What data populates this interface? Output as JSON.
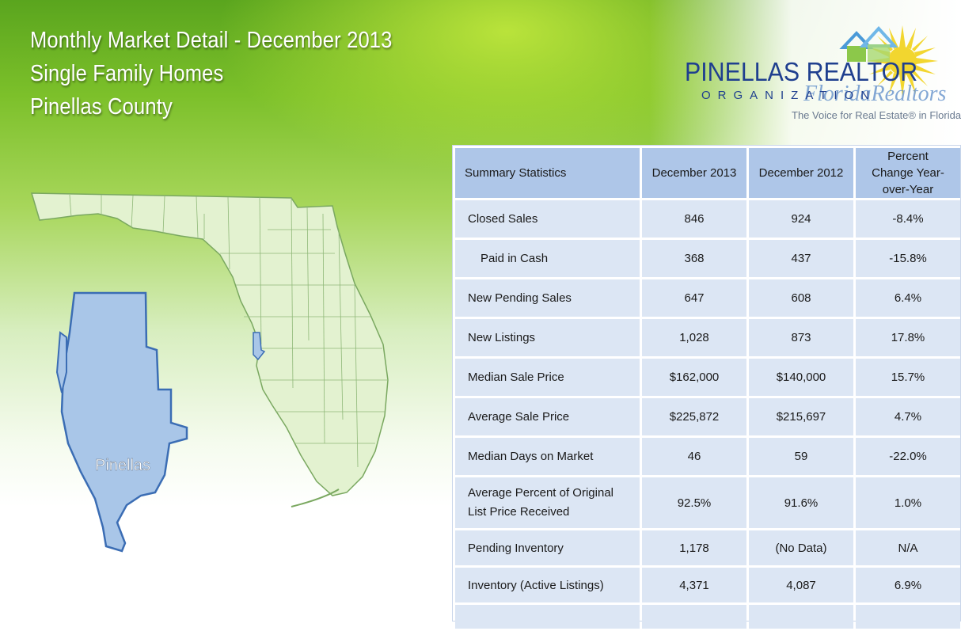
{
  "title": {
    "line1": "Monthly Market Detail - December 2013",
    "line2": "Single Family Homes",
    "line3": "Pinellas County"
  },
  "logo": {
    "main": "PINELLAS REALTOR",
    "org": "ORGANIZATION",
    "florida": "FloridaRealtors",
    "tagline": "The Voice for Real Estate® in Florida"
  },
  "map": {
    "county_label": "Pinellas",
    "colors": {
      "county_fill": "#a9c6e8",
      "county_stroke": "#3b6db4",
      "state_fill": "#e3f2d0",
      "state_stroke": "#7aa860"
    }
  },
  "table": {
    "headers": [
      "Summary Statistics",
      "December 2013",
      "December 2012",
      "Percent Change Year-over-Year"
    ],
    "rows": [
      {
        "label": "Closed Sales",
        "cur": "846",
        "prev": "924",
        "change": "-8.4%"
      },
      {
        "label": "Paid in Cash",
        "cur": "368",
        "prev": "437",
        "change": "-15.8%"
      },
      {
        "label": "New Pending Sales",
        "cur": "647",
        "prev": "608",
        "change": "6.4%"
      },
      {
        "label": "New Listings",
        "cur": "1,028",
        "prev": "873",
        "change": "17.8%"
      },
      {
        "label": "Median Sale Price",
        "cur": "$162,000",
        "prev": "$140,000",
        "change": "15.7%"
      },
      {
        "label": "Average Sale Price",
        "cur": "$225,872",
        "prev": "$215,697",
        "change": "4.7%"
      },
      {
        "label": "Median Days on Market",
        "cur": "46",
        "prev": "59",
        "change": "-22.0%"
      },
      {
        "label": "Average Percent of Original List Price Received",
        "cur": "92.5%",
        "prev": "91.6%",
        "change": "1.0%"
      },
      {
        "label": "Pending Inventory",
        "cur": "1,178",
        "prev": "(No Data)",
        "change": "N/A"
      },
      {
        "label": "Inventory (Active Listings)",
        "cur": "4,371",
        "prev": "4,087",
        "change": "6.9%"
      }
    ]
  }
}
